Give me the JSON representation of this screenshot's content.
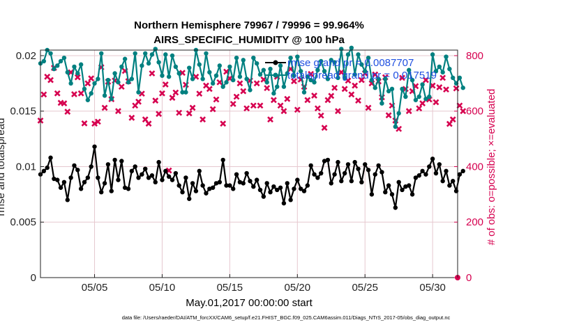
{
  "title_line1": "Northern Hemisphere 79967 / 79996 = 99.964%",
  "title_line2": "AIRS_SPECIFIC_HUMIDITY @ 100 hPa",
  "xlabel": "May.01,2017 00:00:00 start",
  "ylabel_left": "rmse and totalspread",
  "ylabel_right": "# of obs: o=possible; ×=evaluated",
  "footer": "data file: /Users/raeder/DAI/ATM_forcXX/CAM6_setup/f.e21.FHIST_BGC.f09_025.CAM6assim.011/Diags_NTrS_2017-05/obs_diag_output.nc",
  "colors": {
    "rmse": "#000000",
    "spread": "#008080",
    "obs": "#d6004f",
    "legend_text": "#1f4fe0",
    "grid": "#e6c8cf"
  },
  "chart_data": {
    "type": "line",
    "title": "Northern Hemisphere 79967 / 79996 = 99.964%",
    "subtitle": "AIRS_SPECIFIC_HUMIDITY @ 100 hPa",
    "xlabel": "May.01,2017 00:00:00 start",
    "ylabel": "rmse and totalspread",
    "y2label": "# of obs: o=possible; ×=evaluated",
    "xlim": [
      1.0,
      31.85
    ],
    "ylim": [
      0,
      0.0205
    ],
    "y2lim": [
      0,
      820
    ],
    "xticks": [
      5,
      10,
      15,
      20,
      25,
      30
    ],
    "xticklabels": [
      "05/05",
      "05/10",
      "05/15",
      "05/20",
      "05/25",
      "05/30"
    ],
    "yticks": [
      0,
      0.005,
      0.01,
      0.015,
      0.02
    ],
    "yticklabels": [
      "0",
      "0.005",
      "0.01",
      "0.015",
      "0.02"
    ],
    "y2ticks": [
      0,
      200,
      400,
      600,
      800
    ],
    "y2ticklabels": [
      "0",
      "200",
      "400",
      "600",
      "800"
    ],
    "grid": true,
    "legend_position": "top-right",
    "x_start": 1.0,
    "x_step": 0.25,
    "series": [
      {
        "name": "rmse grand pr = 0.0087707",
        "axis": "left",
        "marker": "circle",
        "values": [
          0.0093,
          0.0096,
          0.0099,
          0.0108,
          0.0089,
          0.0088,
          0.0081,
          0.0086,
          0.007,
          0.009,
          0.0101,
          0.0097,
          0.008,
          0.0086,
          0.009,
          0.01,
          0.0118,
          0.009,
          0.0077,
          0.0085,
          0.0102,
          0.0078,
          0.0106,
          0.0088,
          0.0105,
          0.0081,
          0.008,
          0.0096,
          0.01,
          0.009,
          0.0093,
          0.0098,
          0.009,
          0.0092,
          0.0086,
          0.0104,
          0.0088,
          0.0096,
          0.0091,
          0.0088,
          0.0094,
          0.0083,
          0.0077,
          0.009,
          0.0071,
          0.0085,
          0.0078,
          0.0096,
          0.0083,
          0.0076,
          0.008,
          0.0081,
          0.0085,
          0.0086,
          0.0106,
          0.0083,
          0.0083,
          0.008,
          0.0093,
          0.0086,
          0.0085,
          0.0094,
          0.0087,
          0.0082,
          0.0088,
          0.0079,
          0.0073,
          0.0085,
          0.0077,
          0.0082,
          0.0079,
          0.0081,
          0.0067,
          0.0085,
          0.007,
          0.008,
          0.0088,
          0.008,
          0.0078,
          0.0083,
          0.0101,
          0.0093,
          0.009,
          0.0094,
          0.0105,
          0.0106,
          0.0085,
          0.0093,
          0.0104,
          0.0087,
          0.0094,
          0.0102,
          0.0087,
          0.0104,
          0.0098,
          0.0086,
          0.0102,
          0.0097,
          0.0075,
          0.0093,
          0.0101,
          0.0095,
          0.0077,
          0.0083,
          0.0075,
          0.0063,
          0.0086,
          0.0079,
          0.0082,
          0.0083,
          0.0075,
          0.009,
          0.0092,
          0.0096,
          0.0093,
          0.01,
          0.0107,
          0.0094,
          0.0102,
          0.0087,
          0.0096,
          0.0083,
          0.0087,
          0.0078,
          0.0093,
          0.0096
        ]
      },
      {
        "name": "totalspread grand pr = 0.017519",
        "axis": "left",
        "marker": "circle",
        "values": [
          0.0193,
          0.0195,
          0.0205,
          0.0202,
          0.0188,
          0.0191,
          0.0195,
          0.0198,
          0.0185,
          0.0175,
          0.019,
          0.0184,
          0.0192,
          0.017,
          0.016,
          0.0166,
          0.0175,
          0.0179,
          0.0202,
          0.0164,
          0.0178,
          0.0161,
          0.0184,
          0.0176,
          0.019,
          0.0197,
          0.0176,
          0.0179,
          0.0202,
          0.0167,
          0.0191,
          0.0202,
          0.0193,
          0.0201,
          0.0206,
          0.0194,
          0.0182,
          0.0201,
          0.0181,
          0.02,
          0.019,
          0.0184,
          0.0167,
          0.0167,
          0.0189,
          0.0179,
          0.0205,
          0.0192,
          0.0179,
          0.0202,
          0.0185,
          0.0175,
          0.0182,
          0.0191,
          0.0172,
          0.0176,
          0.019,
          0.0178,
          0.0198,
          0.0181,
          0.0196,
          0.0179,
          0.0169,
          0.0198,
          0.0193,
          0.0183,
          0.0187,
          0.0176,
          0.0188,
          0.0166,
          0.0172,
          0.0191,
          0.0172,
          0.0184,
          0.0198,
          0.0182,
          0.0199,
          0.0186,
          0.0167,
          0.0181,
          0.0178,
          0.0176,
          0.0187,
          0.0195,
          0.0186,
          0.0179,
          0.0196,
          0.0194,
          0.018,
          0.0206,
          0.018,
          0.0201,
          0.0207,
          0.0183,
          0.0201,
          0.0192,
          0.0186,
          0.0198,
          0.0178,
          0.0171,
          0.0179,
          0.0157,
          0.0179,
          0.0168,
          0.017,
          0.0136,
          0.0148,
          0.017,
          0.0163,
          0.0187,
          0.0178,
          0.016,
          0.0163,
          0.0174,
          0.0161,
          0.0163,
          0.0201,
          0.0186,
          0.019,
          0.0185,
          0.0199,
          0.0188,
          0.018,
          0.0175,
          0.018,
          0.0171
        ]
      },
      {
        "name": "# of obs evaluated",
        "axis": "right",
        "marker": "x",
        "values": [
          566,
          660,
          724,
          712,
          756,
          664,
          630,
          628,
          598,
          740,
          661,
          722,
          664,
          556,
          700,
          718,
          555,
          562,
          758,
          612,
          706,
          643,
          710,
          600,
          688,
          745,
          708,
          576,
          620,
          634,
          663,
          570,
          555,
          736,
          638,
          590,
          664,
          696,
          386,
          648,
          667,
          594,
          738,
          695,
          592,
          612,
          724,
          663,
          570,
          692,
          680,
          607,
          642,
          704,
          555,
          742,
          718,
          626,
          652,
          700,
          672,
          610,
          710,
          620,
          700,
          620,
          714,
          683,
          570,
          640,
          724,
          620,
          600,
          644,
          752,
          708,
          605,
          714,
          688,
          640,
          734,
          656,
          610,
          584,
          540,
          640,
          655,
          684,
          600,
          740,
          680,
          710,
          660,
          692,
          638,
          712,
          736,
          612,
          700,
          732,
          707,
          650,
          722,
          585,
          620,
          566,
          536,
          720,
          680,
          600,
          672,
          690,
          610,
          628,
          712,
          642,
          692,
          632,
          686,
          720,
          678,
          554,
          570,
          682,
          620,
          600
        ]
      }
    ]
  }
}
